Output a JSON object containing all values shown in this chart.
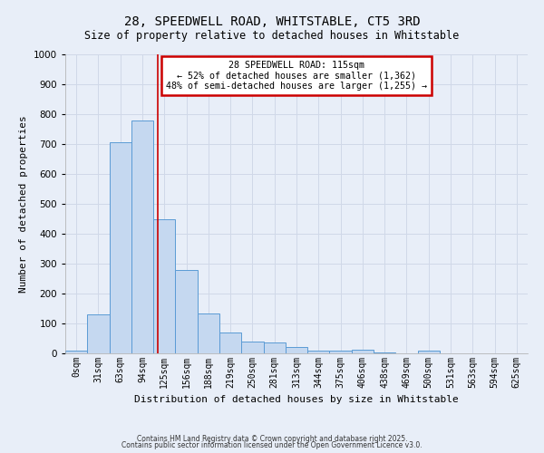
{
  "title": "28, SPEEDWELL ROAD, WHITSTABLE, CT5 3RD",
  "subtitle": "Size of property relative to detached houses in Whitstable",
  "xlabel": "Distribution of detached houses by size in Whitstable",
  "ylabel": "Number of detached properties",
  "bin_labels": [
    "0sqm",
    "31sqm",
    "63sqm",
    "94sqm",
    "125sqm",
    "156sqm",
    "188sqm",
    "219sqm",
    "250sqm",
    "281sqm",
    "313sqm",
    "344sqm",
    "375sqm",
    "406sqm",
    "438sqm",
    "469sqm",
    "500sqm",
    "531sqm",
    "563sqm",
    "594sqm",
    "625sqm"
  ],
  "bar_values": [
    8,
    130,
    705,
    780,
    450,
    280,
    133,
    70,
    38,
    35,
    22,
    10,
    10,
    11,
    3,
    1,
    8,
    0,
    0,
    0,
    0
  ],
  "bar_color": "#c5d8f0",
  "bar_edge_color": "#5b9bd5",
  "ylim": [
    0,
    1000
  ],
  "red_line_x": 3.72,
  "annotation_title": "28 SPEEDWELL ROAD: 115sqm",
  "annotation_line1": "← 52% of detached houses are smaller (1,362)",
  "annotation_line2": "48% of semi-detached houses are larger (1,255) →",
  "annotation_box_color": "#ffffff",
  "annotation_box_edge": "#cc0000",
  "red_line_color": "#cc0000",
  "grid_color": "#d0d8e8",
  "bg_color": "#e8eef8",
  "footer1": "Contains HM Land Registry data © Crown copyright and database right 2025.",
  "footer2": "Contains public sector information licensed under the Open Government Licence v3.0."
}
